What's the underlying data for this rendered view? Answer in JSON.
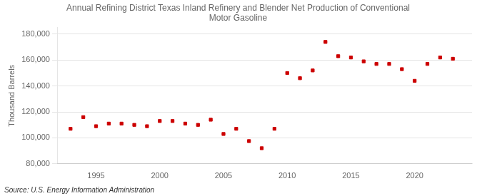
{
  "chart_data": {
    "type": "scatter",
    "title": "Annual Refining District Texas Inland Refinery and Blender Net Production of Conventional\nMotor Gasoline",
    "ylabel": "Thousand Barrels",
    "annotation": "Source: U.S. Energy Information Administration",
    "x": [
      1993,
      1994,
      1995,
      1996,
      1997,
      1998,
      1999,
      2000,
      2001,
      2002,
      2003,
      2004,
      2005,
      2006,
      2007,
      2008,
      2009,
      2010,
      2011,
      2012,
      2013,
      2014,
      2015,
      2016,
      2017,
      2018,
      2019,
      2020,
      2021,
      2022,
      2023
    ],
    "values": [
      107000,
      116000,
      109000,
      111000,
      111000,
      110000,
      109000,
      113000,
      113000,
      111000,
      110000,
      114000,
      103000,
      107000,
      97500,
      92000,
      107000,
      150000,
      146000,
      152000,
      174000,
      163000,
      162000,
      159000,
      157000,
      157000,
      153000,
      144000,
      157000,
      162000,
      161000
    ],
    "color": "#cc0000",
    "marker": "square",
    "xlim": [
      1992,
      2024.5
    ],
    "xticks": [
      1995,
      2000,
      2005,
      2010,
      2015,
      2020
    ],
    "ylim": [
      80000,
      185000
    ],
    "yticks": [
      {
        "value": 80000,
        "label": "80,000"
      },
      {
        "value": 100000,
        "label": "100,000"
      },
      {
        "value": 120000,
        "label": "120,000"
      },
      {
        "value": 140000,
        "label": "140,000"
      },
      {
        "value": 160000,
        "label": "160,000"
      },
      {
        "value": 180000,
        "label": "180,000"
      }
    ],
    "grid": "y"
  }
}
